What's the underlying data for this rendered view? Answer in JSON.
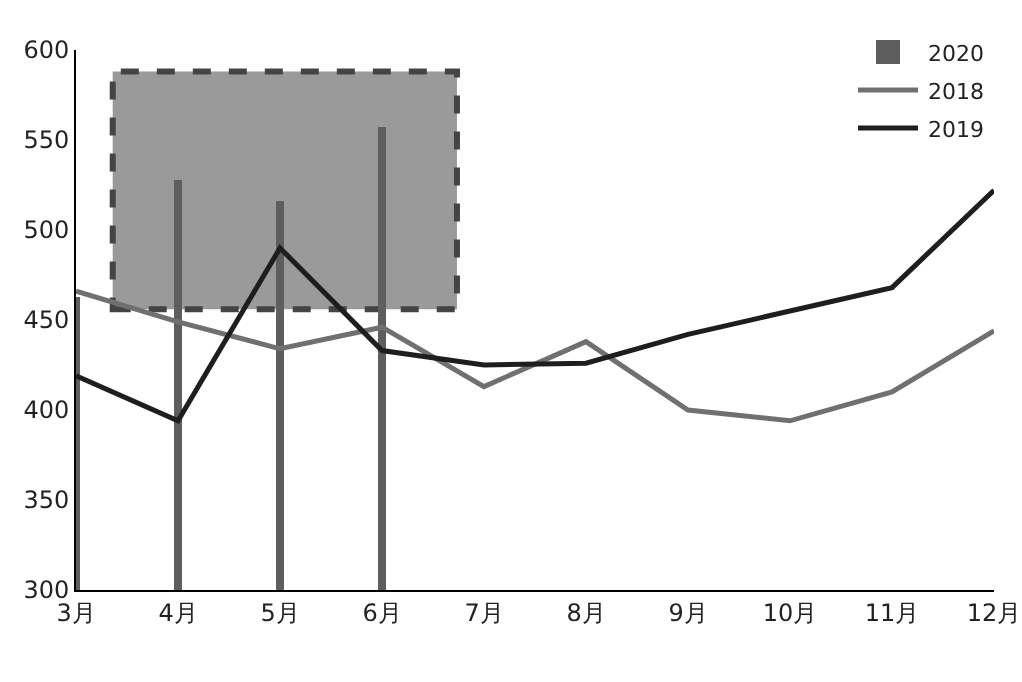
{
  "chart_data": {
    "type": "line",
    "categories": [
      "3月",
      "4月",
      "5月",
      "6月",
      "7月",
      "8月",
      "9月",
      "10月",
      "11月",
      "12月"
    ],
    "ylim": [
      300,
      600
    ],
    "yticks": [
      300,
      350,
      400,
      450,
      500,
      550,
      600
    ],
    "grid": false,
    "legend": "top right",
    "series": [
      {
        "name": "2020",
        "type": "bar",
        "color": "#5e5e5e",
        "values": [
          463,
          528,
          516,
          557,
          null,
          null,
          null,
          null,
          null,
          null
        ]
      },
      {
        "name": "2018",
        "color": "#707070",
        "values": [
          466,
          449,
          434,
          446,
          413,
          438,
          400,
          394,
          410,
          444
        ]
      },
      {
        "name": "2019",
        "color": "#1e1e1e",
        "values": [
          419,
          394,
          490,
          433,
          425,
          426,
          442,
          455,
          468,
          522
        ]
      }
    ]
  }
}
